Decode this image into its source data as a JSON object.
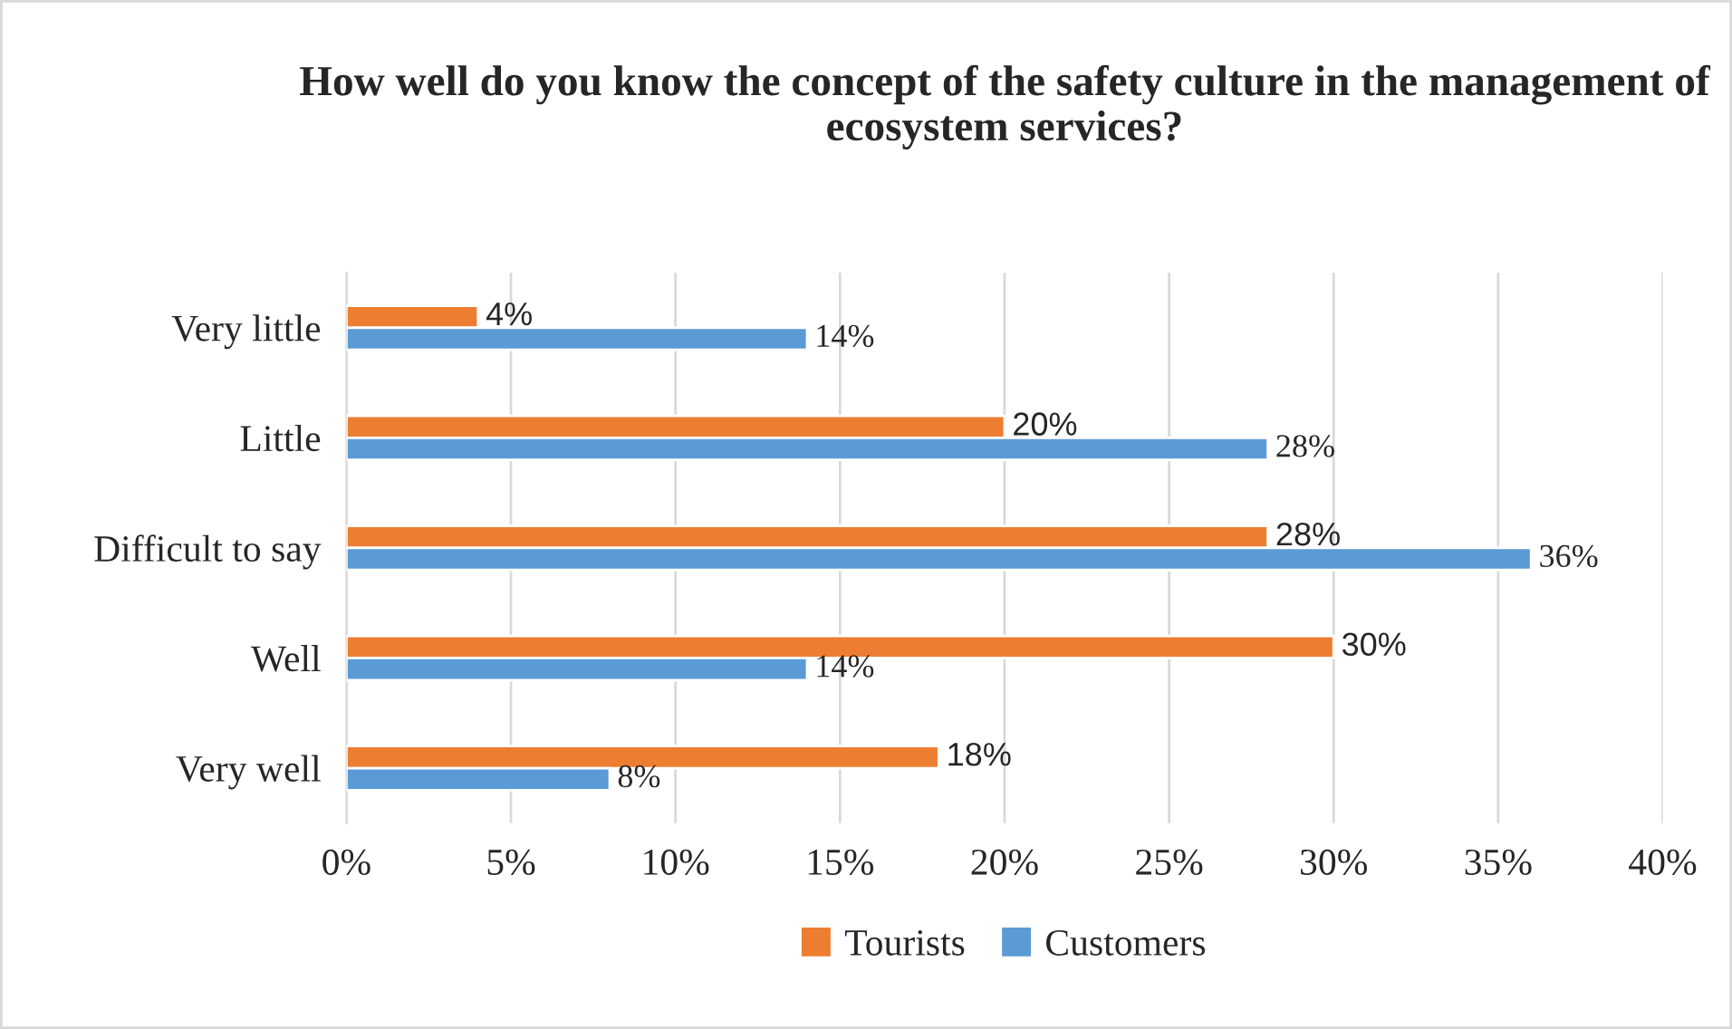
{
  "chart_data": {
    "type": "bar",
    "orientation": "horizontal",
    "title": "How well do you know the concept of the safety culture in the management of ecosystem services?",
    "categories": [
      "Very little",
      "Little",
      "Difficult to say",
      "Well",
      "Very well"
    ],
    "series": [
      {
        "name": "Tourists",
        "color": "#ed7d31",
        "values": [
          4,
          20,
          28,
          30,
          18
        ],
        "value_labels": [
          "4%",
          "20%",
          "28%",
          "30%",
          "18%"
        ]
      },
      {
        "name": "Customers",
        "color": "#5b9bd5",
        "values": [
          14,
          28,
          36,
          14,
          8
        ],
        "value_labels": [
          "14%",
          "28%",
          "36%",
          "14%",
          "8%"
        ]
      }
    ],
    "xlim": [
      0,
      40
    ],
    "xticks": [
      {
        "value": 0,
        "label": "0%"
      },
      {
        "value": 5,
        "label": "5%"
      },
      {
        "value": 10,
        "label": "10%"
      },
      {
        "value": 15,
        "label": "15%"
      },
      {
        "value": 20,
        "label": "20%"
      },
      {
        "value": 25,
        "label": "25%"
      },
      {
        "value": 30,
        "label": "30%"
      },
      {
        "value": 35,
        "label": "35%"
      },
      {
        "value": 40,
        "label": "40%"
      }
    ],
    "grid": "x",
    "legend": "bottom"
  }
}
